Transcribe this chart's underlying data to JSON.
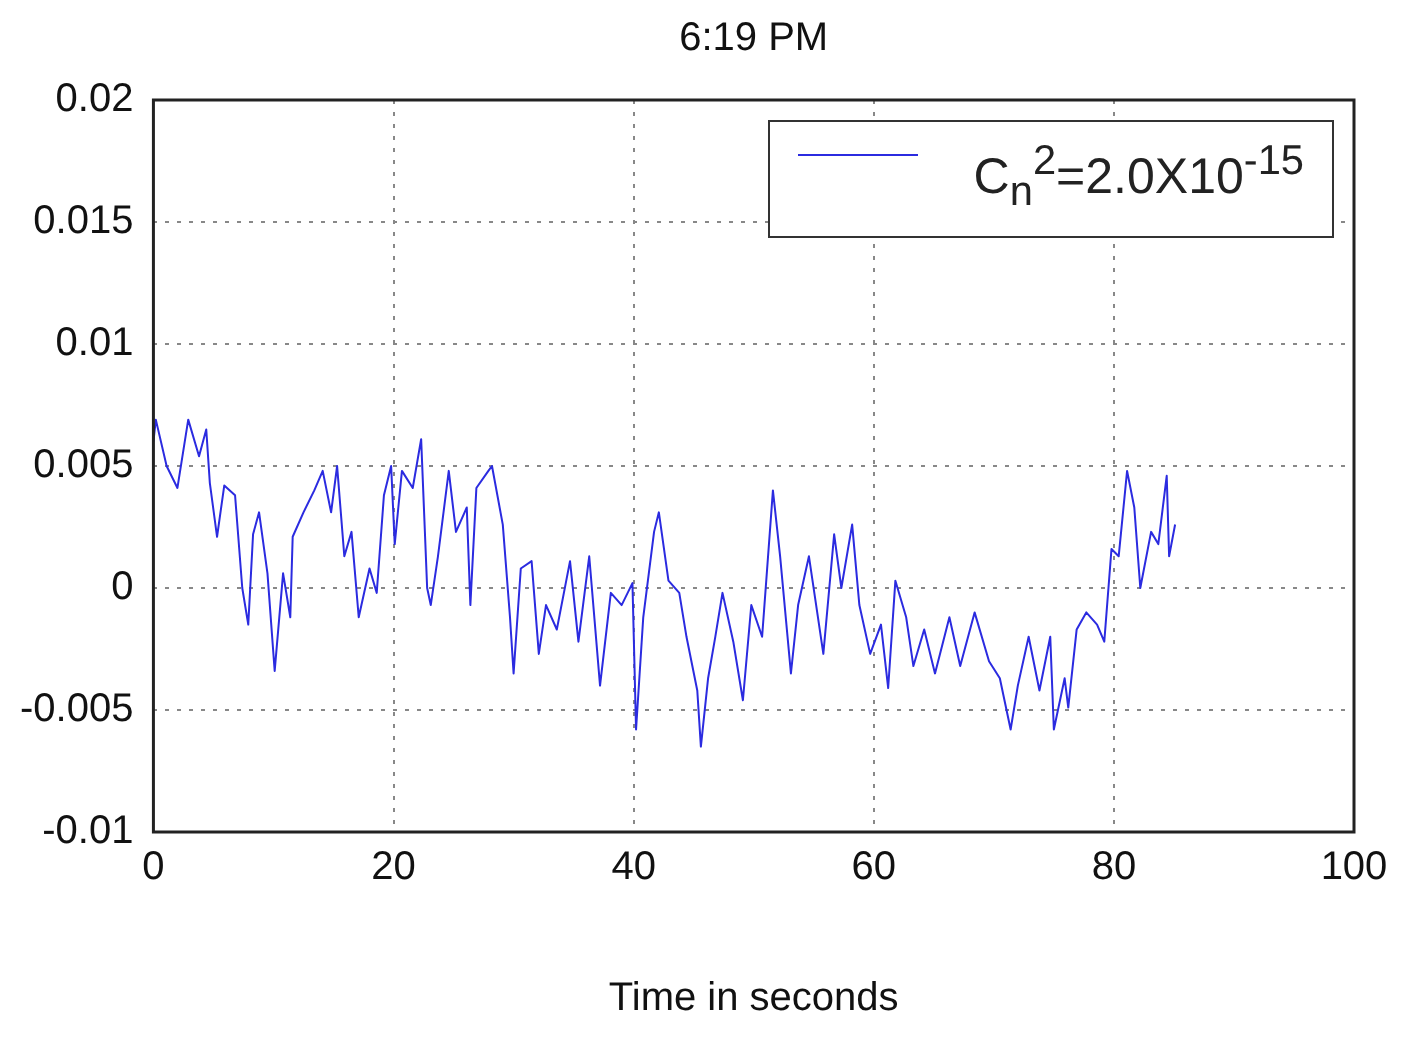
{
  "chart_data": {
    "type": "line",
    "title": "6:19 PM",
    "xlabel": "Time in seconds",
    "x": [
      0,
      0.2,
      1.1,
      2.0,
      2.9,
      3.8,
      4.4,
      4.7,
      5.3,
      5.9,
      6.8,
      7.4,
      7.9,
      8.3,
      8.8,
      9.5,
      10.1,
      10.8,
      11.4,
      11.6,
      12.5,
      13.4,
      14.1,
      14.8,
      15.3,
      15.9,
      16.5,
      17.1,
      18.0,
      18.6,
      19.2,
      19.8,
      20.1,
      20.7,
      21.6,
      22.3,
      22.8,
      23.1,
      23.7,
      24.6,
      25.2,
      26.1,
      26.4,
      26.9,
      27.9,
      28.2,
      29.1,
      29.7,
      30.0,
      30.6,
      31.5,
      32.1,
      32.7,
      33.6,
      34.7,
      35.4,
      36.3,
      37.2,
      38.1,
      39.0,
      39.9,
      40.2,
      40.8,
      41.7,
      42.1,
      42.9,
      43.8,
      44.4,
      45.3,
      45.6,
      46.2,
      46.8,
      47.4,
      48.3,
      49.1,
      49.8,
      50.7,
      51.6,
      52.2,
      53.1,
      53.7,
      54.6,
      55.8,
      56.7,
      57.3,
      58.2,
      58.8,
      59.7,
      60.6,
      61.2,
      61.8,
      62.7,
      63.3,
      64.2,
      65.1,
      66.3,
      67.2,
      68.4,
      69.6,
      70.5,
      71.4,
      72.0,
      72.9,
      73.8,
      74.7,
      75.0,
      75.9,
      76.2,
      76.9,
      77.7,
      78.6,
      79.2,
      79.8,
      80.4,
      81.1,
      81.7,
      82.2,
      83.1,
      83.7,
      84.4,
      84.6,
      85.1
    ],
    "series": [
      {
        "name": "C$_{n}$$^{2}$=2.0X10$^{-15}$",
        "color": "#2b2be0",
        "values": [
          0.006,
          0.0069,
          0.005,
          0.0041,
          0.0069,
          0.0054,
          0.0065,
          0.0043,
          0.0021,
          0.0042,
          0.0038,
          0.0,
          -0.0015,
          0.0022,
          0.0031,
          0.0006,
          -0.0034,
          0.0006,
          -0.0012,
          0.0021,
          0.0031,
          0.004,
          0.0048,
          0.0031,
          0.005,
          0.0013,
          0.0023,
          -0.0012,
          0.0008,
          -0.0002,
          0.0038,
          0.005,
          0.0018,
          0.0048,
          0.0041,
          0.0061,
          0.0,
          -0.0007,
          0.0013,
          0.0048,
          0.0023,
          0.0033,
          -0.0007,
          0.0041,
          0.0048,
          0.005,
          0.0026,
          -0.0012,
          -0.0035,
          0.0008,
          0.0011,
          -0.0027,
          -0.0007,
          -0.0017,
          0.0011,
          -0.0022,
          0.0013,
          -0.004,
          -0.0002,
          -0.0007,
          0.0002,
          -0.0058,
          -0.0012,
          0.0023,
          0.0031,
          0.0003,
          -0.0002,
          -0.002,
          -0.0042,
          -0.0065,
          -0.0037,
          -0.002,
          -0.0002,
          -0.0022,
          -0.0046,
          -0.0007,
          -0.002,
          0.004,
          0.0013,
          -0.0035,
          -0.0007,
          0.0013,
          -0.0027,
          0.0022,
          0.0,
          0.0026,
          -0.0007,
          -0.0027,
          -0.0015,
          -0.0041,
          0.0003,
          -0.0012,
          -0.0032,
          -0.0017,
          -0.0035,
          -0.0012,
          -0.0032,
          -0.001,
          -0.003,
          -0.0037,
          -0.0058,
          -0.004,
          -0.002,
          -0.0042,
          -0.002,
          -0.0058,
          -0.0037,
          -0.0049,
          -0.0017,
          -0.001,
          -0.0015,
          -0.0022,
          0.0016,
          0.0013,
          0.0048,
          0.0033,
          0.0,
          0.0023,
          0.0018,
          0.0046,
          0.0013,
          0.0026
        ]
      }
    ],
    "xlim": [
      0,
      100
    ],
    "xticks": [
      0,
      20,
      40,
      60,
      80,
      100
    ],
    "ylim": [
      -0.01,
      0.02
    ],
    "yticks": [
      -0.01,
      -0.005,
      0,
      0.005,
      0.01,
      0.015,
      0.02
    ],
    "grid": true,
    "legend": "top right",
    "marker": "none",
    "line_style": "solid"
  }
}
